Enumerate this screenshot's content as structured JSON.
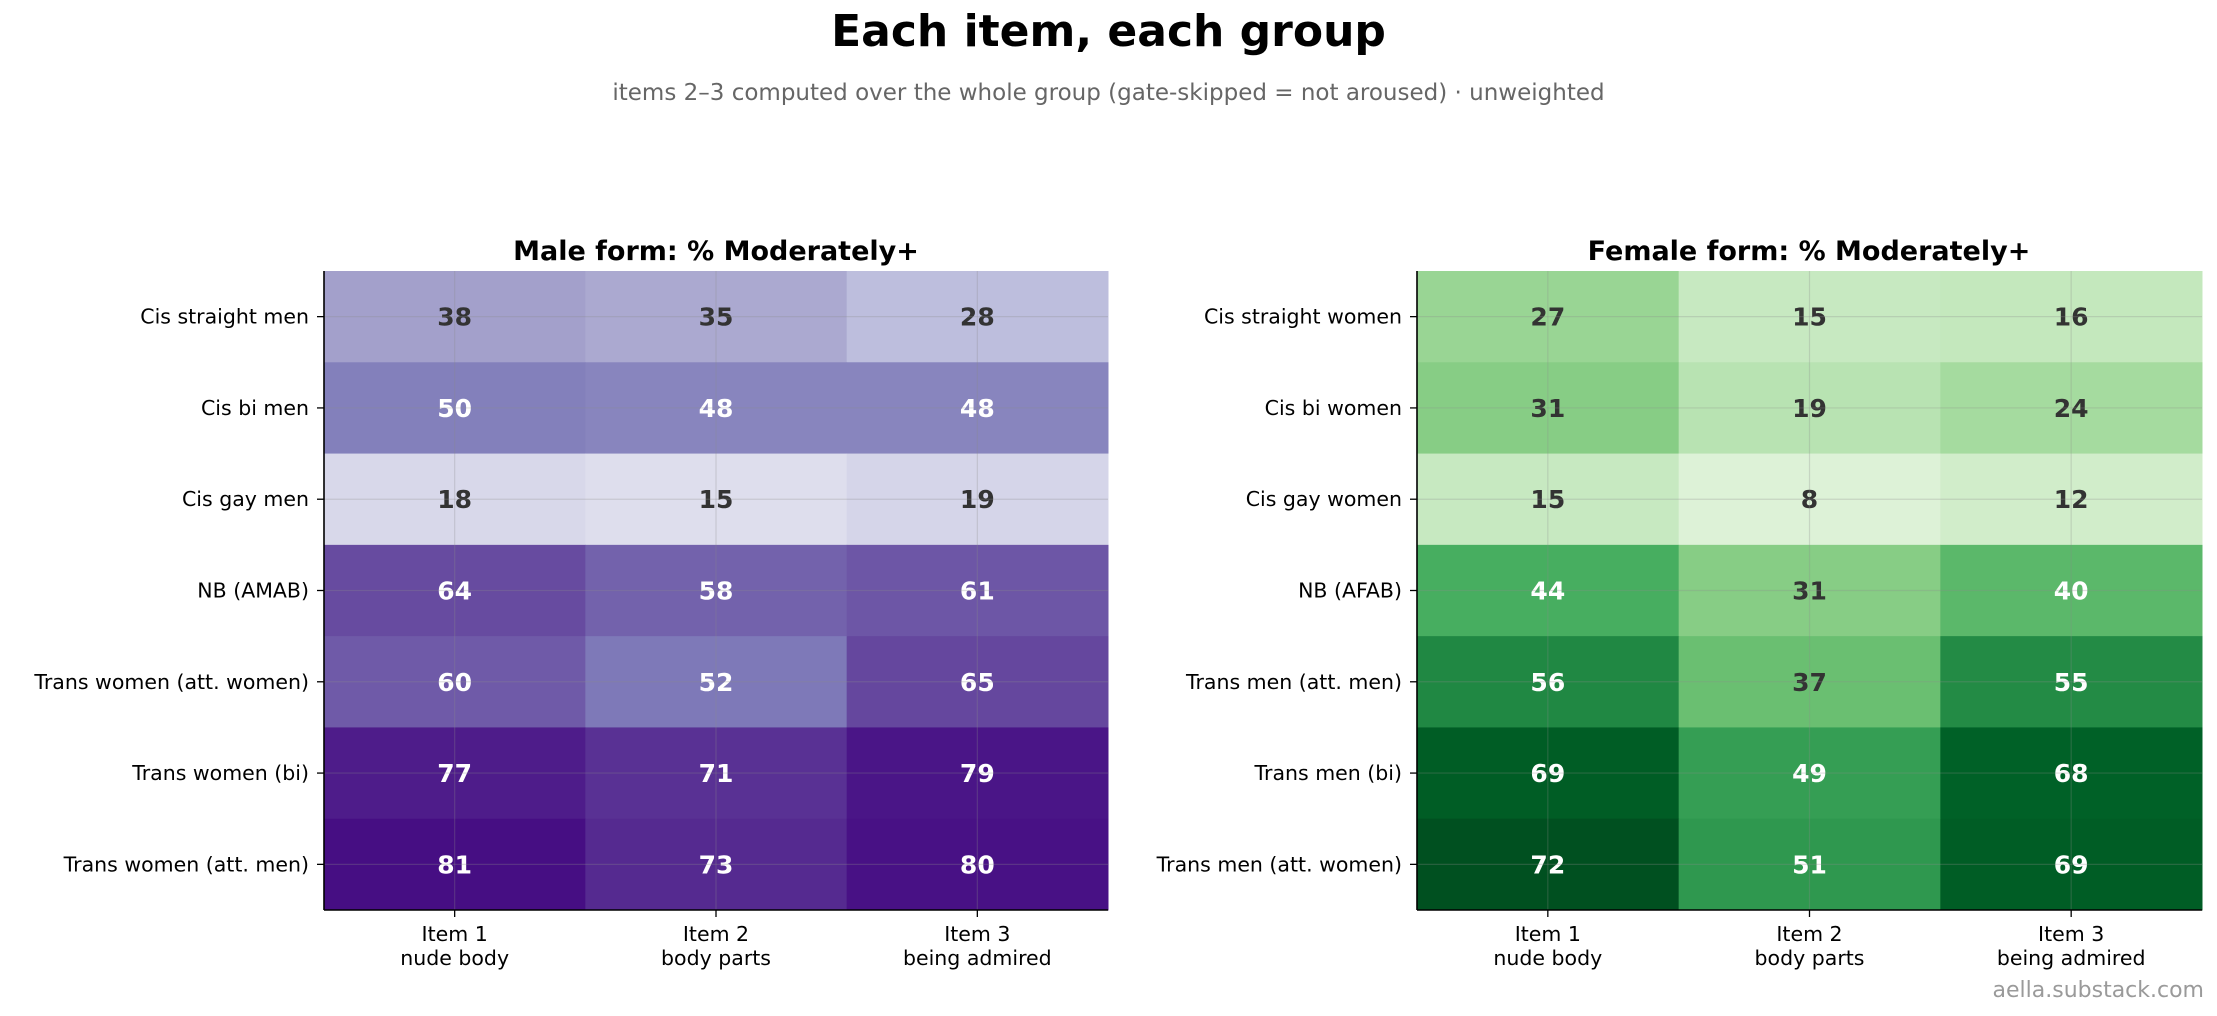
{
  "title": "Each item, each group",
  "subtitle": "items 2–3 computed over the whole group (gate-skipped = not aroused) · unweighted",
  "credit": "aella.substack.com",
  "chart_data": [
    {
      "type": "heatmap",
      "title": "Male form: % Moderately+",
      "colormap": "purples",
      "vmin": 0,
      "vmax": 85,
      "grid": true,
      "rows": [
        "Cis straight men",
        "Cis bi men",
        "Cis gay men",
        "NB (AMAB)",
        "Trans women (att. women)",
        "Trans women (bi)",
        "Trans women (att. men)"
      ],
      "columns": [
        [
          "Item 1",
          "nude body"
        ],
        [
          "Item 2",
          "body parts"
        ],
        [
          "Item 3",
          "being admired"
        ]
      ],
      "values": [
        [
          38,
          35,
          28
        ],
        [
          50,
          48,
          48
        ],
        [
          18,
          15,
          19
        ],
        [
          64,
          58,
          61
        ],
        [
          60,
          52,
          65
        ],
        [
          77,
          71,
          79
        ],
        [
          81,
          73,
          80
        ]
      ]
    },
    {
      "type": "heatmap",
      "title": "Female form: % Moderately+",
      "colormap": "greens",
      "vmin": 0,
      "vmax": 75,
      "grid": true,
      "rows": [
        "Cis straight women",
        "Cis bi women",
        "Cis gay women",
        "NB (AFAB)",
        "Trans men (att. men)",
        "Trans men (bi)",
        "Trans men (att. women)"
      ],
      "columns": [
        [
          "Item 1",
          "nude body"
        ],
        [
          "Item 2",
          "body parts"
        ],
        [
          "Item 3",
          "being admired"
        ]
      ],
      "values": [
        [
          27,
          15,
          16
        ],
        [
          31,
          19,
          24
        ],
        [
          15,
          8,
          12
        ],
        [
          44,
          31,
          40
        ],
        [
          56,
          37,
          55
        ],
        [
          69,
          49,
          68
        ],
        [
          72,
          51,
          69
        ]
      ]
    }
  ]
}
